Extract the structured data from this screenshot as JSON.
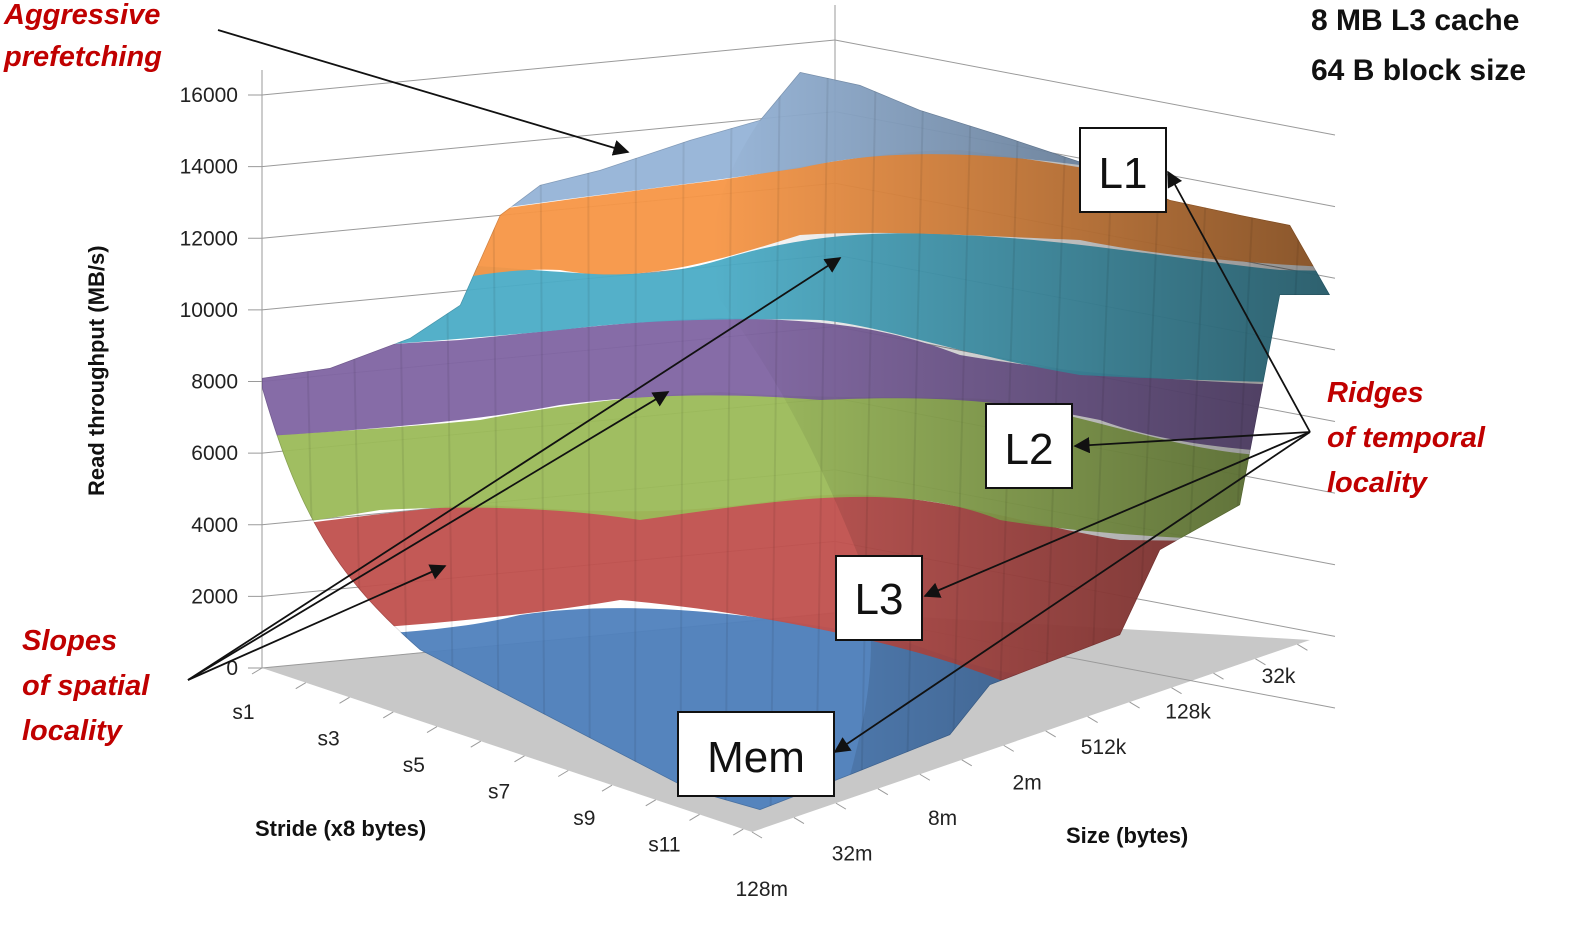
{
  "chart_data": {
    "type": "surface",
    "title": "",
    "info_lines": [
      "8 MB L3 cache",
      "64 B block size"
    ],
    "zlabel": "Read throughput (MB/s)",
    "xlabel": "Stride (x8 bytes)",
    "ylabel": "Size (bytes)",
    "zlim": [
      0,
      16000
    ],
    "z_ticks": [
      "0",
      "2000",
      "4000",
      "6000",
      "8000",
      "10000",
      "12000",
      "14000",
      "16000"
    ],
    "stride_ticks": [
      "s1",
      "s3",
      "s5",
      "s7",
      "s9",
      "s11"
    ],
    "size_ticks": [
      "128m",
      "32m",
      "8m",
      "2m",
      "512k",
      "128k",
      "32k"
    ],
    "band_colors": [
      "#4f81bd",
      "#c0504d",
      "#9bbb59",
      "#8064a2",
      "#4bacc6",
      "#f79646",
      "#95b3d7"
    ],
    "annotations": {
      "aggressive_prefetching": [
        "Aggressive",
        "prefetching"
      ],
      "slopes": [
        "Slopes",
        "of spatial",
        "locality"
      ],
      "ridges": [
        "Ridges",
        "of temporal",
        "locality"
      ]
    },
    "level_labels": [
      "L1",
      "L2",
      "L3",
      "Mem"
    ]
  }
}
